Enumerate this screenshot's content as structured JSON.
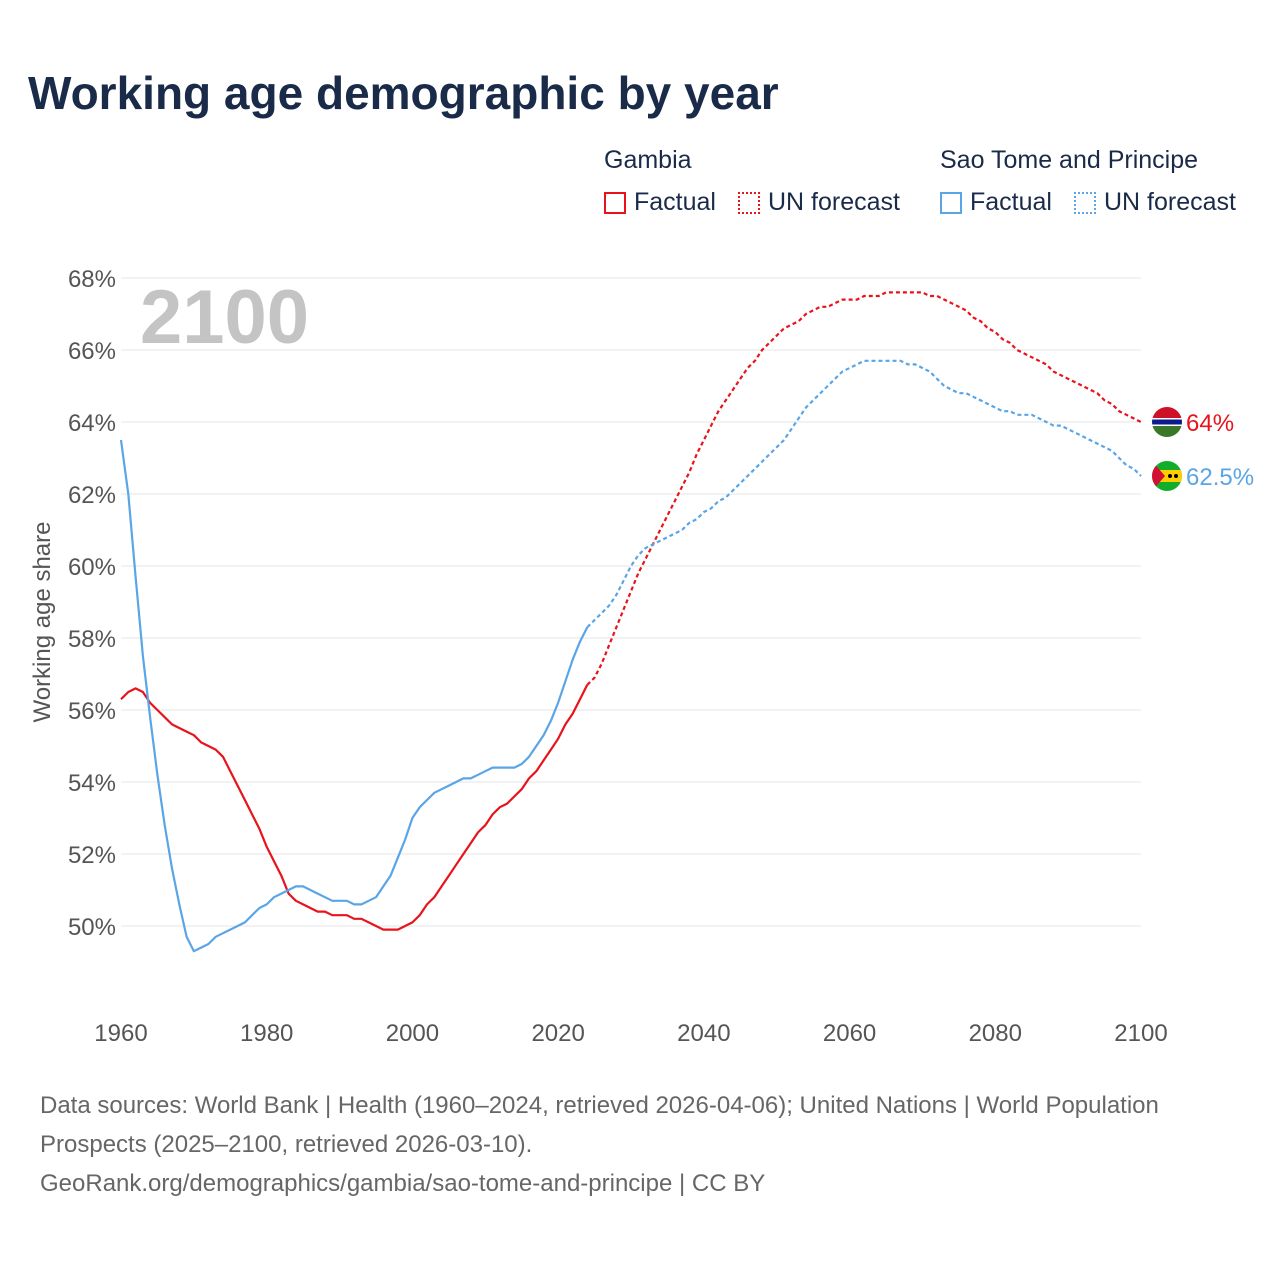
{
  "title": "Working age demographic by year",
  "legend": {
    "groups": [
      {
        "name": "Gambia",
        "factual_label": "Factual",
        "forecast_label": "UN forecast",
        "color": "#e8131b"
      },
      {
        "name": "Sao Tome and Principe",
        "factual_label": "Factual",
        "forecast_label": "UN forecast",
        "color": "#5aa5e6"
      }
    ]
  },
  "sources": {
    "line1": "Data sources: World Bank | Health (1960–2024, retrieved 2026-04-06); United Nations | World Population Prospects (2025–2100, retrieved 2026-03-10).",
    "line2": "GeoRank.org/demographics/gambia/sao-tome-and-principe | CC BY"
  },
  "chart_data": {
    "type": "line",
    "year_watermark": "2100",
    "ylabel": "Working age share",
    "xlim": [
      1960,
      2100
    ],
    "ylim": [
      47.5,
      68
    ],
    "x_ticks": [
      1960,
      1980,
      2000,
      2020,
      2040,
      2060,
      2080,
      2100
    ],
    "y_ticks": [
      50,
      52,
      54,
      56,
      58,
      60,
      62,
      64,
      66,
      68
    ],
    "y_tick_labels": [
      "50%",
      "52%",
      "54%",
      "56%",
      "58%",
      "60%",
      "62%",
      "64%",
      "66%",
      "68%"
    ],
    "grid": true,
    "forecast_start": 2024,
    "series": [
      {
        "name": "Gambia",
        "color": "#e8131b",
        "end_label": "64%",
        "flag": "gambia-flag",
        "points": [
          [
            1960,
            56.3
          ],
          [
            1961,
            56.5
          ],
          [
            1962,
            56.6
          ],
          [
            1963,
            56.5
          ],
          [
            1964,
            56.2
          ],
          [
            1965,
            56.0
          ],
          [
            1966,
            55.8
          ],
          [
            1967,
            55.6
          ],
          [
            1968,
            55.5
          ],
          [
            1969,
            55.4
          ],
          [
            1970,
            55.3
          ],
          [
            1971,
            55.1
          ],
          [
            1972,
            55.0
          ],
          [
            1973,
            54.9
          ],
          [
            1974,
            54.7
          ],
          [
            1975,
            54.3
          ],
          [
            1976,
            53.9
          ],
          [
            1977,
            53.5
          ],
          [
            1978,
            53.1
          ],
          [
            1979,
            52.7
          ],
          [
            1980,
            52.2
          ],
          [
            1981,
            51.8
          ],
          [
            1982,
            51.4
          ],
          [
            1983,
            50.9
          ],
          [
            1984,
            50.7
          ],
          [
            1985,
            50.6
          ],
          [
            1986,
            50.5
          ],
          [
            1987,
            50.4
          ],
          [
            1988,
            50.4
          ],
          [
            1989,
            50.3
          ],
          [
            1990,
            50.3
          ],
          [
            1991,
            50.3
          ],
          [
            1992,
            50.2
          ],
          [
            1993,
            50.2
          ],
          [
            1994,
            50.1
          ],
          [
            1995,
            50.0
          ],
          [
            1996,
            49.9
          ],
          [
            1997,
            49.9
          ],
          [
            1998,
            49.9
          ],
          [
            1999,
            50.0
          ],
          [
            2000,
            50.1
          ],
          [
            2001,
            50.3
          ],
          [
            2002,
            50.6
          ],
          [
            2003,
            50.8
          ],
          [
            2004,
            51.1
          ],
          [
            2005,
            51.4
          ],
          [
            2006,
            51.7
          ],
          [
            2007,
            52.0
          ],
          [
            2008,
            52.3
          ],
          [
            2009,
            52.6
          ],
          [
            2010,
            52.8
          ],
          [
            2011,
            53.1
          ],
          [
            2012,
            53.3
          ],
          [
            2013,
            53.4
          ],
          [
            2014,
            53.6
          ],
          [
            2015,
            53.8
          ],
          [
            2016,
            54.1
          ],
          [
            2017,
            54.3
          ],
          [
            2018,
            54.6
          ],
          [
            2019,
            54.9
          ],
          [
            2020,
            55.2
          ],
          [
            2021,
            55.6
          ],
          [
            2022,
            55.9
          ],
          [
            2023,
            56.3
          ],
          [
            2024,
            56.7
          ],
          [
            2025,
            56.9
          ],
          [
            2026,
            57.3
          ],
          [
            2027,
            57.8
          ],
          [
            2028,
            58.3
          ],
          [
            2029,
            58.8
          ],
          [
            2030,
            59.3
          ],
          [
            2031,
            59.8
          ],
          [
            2032,
            60.2
          ],
          [
            2033,
            60.6
          ],
          [
            2034,
            61.0
          ],
          [
            2035,
            61.4
          ],
          [
            2036,
            61.8
          ],
          [
            2037,
            62.2
          ],
          [
            2038,
            62.6
          ],
          [
            2039,
            63.1
          ],
          [
            2040,
            63.5
          ],
          [
            2041,
            63.9
          ],
          [
            2042,
            64.3
          ],
          [
            2043,
            64.6
          ],
          [
            2044,
            64.9
          ],
          [
            2045,
            65.2
          ],
          [
            2046,
            65.5
          ],
          [
            2047,
            65.7
          ],
          [
            2048,
            66.0
          ],
          [
            2049,
            66.2
          ],
          [
            2050,
            66.4
          ],
          [
            2051,
            66.6
          ],
          [
            2052,
            66.7
          ],
          [
            2053,
            66.8
          ],
          [
            2054,
            67.0
          ],
          [
            2055,
            67.1
          ],
          [
            2056,
            67.2
          ],
          [
            2057,
            67.2
          ],
          [
            2058,
            67.3
          ],
          [
            2059,
            67.4
          ],
          [
            2060,
            67.4
          ],
          [
            2061,
            67.4
          ],
          [
            2062,
            67.5
          ],
          [
            2063,
            67.5
          ],
          [
            2064,
            67.5
          ],
          [
            2065,
            67.6
          ],
          [
            2066,
            67.6
          ],
          [
            2067,
            67.6
          ],
          [
            2068,
            67.6
          ],
          [
            2069,
            67.6
          ],
          [
            2070,
            67.6
          ],
          [
            2071,
            67.5
          ],
          [
            2072,
            67.5
          ],
          [
            2073,
            67.4
          ],
          [
            2074,
            67.3
          ],
          [
            2075,
            67.2
          ],
          [
            2076,
            67.1
          ],
          [
            2077,
            66.9
          ],
          [
            2078,
            66.8
          ],
          [
            2079,
            66.6
          ],
          [
            2080,
            66.5
          ],
          [
            2081,
            66.3
          ],
          [
            2082,
            66.2
          ],
          [
            2083,
            66.0
          ],
          [
            2084,
            65.9
          ],
          [
            2085,
            65.8
          ],
          [
            2086,
            65.7
          ],
          [
            2087,
            65.6
          ],
          [
            2088,
            65.4
          ],
          [
            2089,
            65.3
          ],
          [
            2090,
            65.2
          ],
          [
            2091,
            65.1
          ],
          [
            2092,
            65.0
          ],
          [
            2093,
            64.9
          ],
          [
            2094,
            64.8
          ],
          [
            2095,
            64.6
          ],
          [
            2096,
            64.5
          ],
          [
            2097,
            64.3
          ],
          [
            2098,
            64.2
          ],
          [
            2099,
            64.1
          ],
          [
            2100,
            64.0
          ]
        ]
      },
      {
        "name": "Sao Tome and Principe",
        "color": "#5aa5e6",
        "end_label": "62.5%",
        "flag": "sao-tome-and-principe-flag",
        "points": [
          [
            1960,
            63.5
          ],
          [
            1961,
            62.0
          ],
          [
            1962,
            59.7
          ],
          [
            1963,
            57.5
          ],
          [
            1964,
            55.8
          ],
          [
            1965,
            54.2
          ],
          [
            1966,
            52.8
          ],
          [
            1967,
            51.6
          ],
          [
            1968,
            50.6
          ],
          [
            1969,
            49.7
          ],
          [
            1970,
            49.3
          ],
          [
            1971,
            49.4
          ],
          [
            1972,
            49.5
          ],
          [
            1973,
            49.7
          ],
          [
            1974,
            49.8
          ],
          [
            1975,
            49.9
          ],
          [
            1976,
            50.0
          ],
          [
            1977,
            50.1
          ],
          [
            1978,
            50.3
          ],
          [
            1979,
            50.5
          ],
          [
            1980,
            50.6
          ],
          [
            1981,
            50.8
          ],
          [
            1982,
            50.9
          ],
          [
            1983,
            51.0
          ],
          [
            1984,
            51.1
          ],
          [
            1985,
            51.1
          ],
          [
            1986,
            51.0
          ],
          [
            1987,
            50.9
          ],
          [
            1988,
            50.8
          ],
          [
            1989,
            50.7
          ],
          [
            1990,
            50.7
          ],
          [
            1991,
            50.7
          ],
          [
            1992,
            50.6
          ],
          [
            1993,
            50.6
          ],
          [
            1994,
            50.7
          ],
          [
            1995,
            50.8
          ],
          [
            1996,
            51.1
          ],
          [
            1997,
            51.4
          ],
          [
            1998,
            51.9
          ],
          [
            1999,
            52.4
          ],
          [
            2000,
            53.0
          ],
          [
            2001,
            53.3
          ],
          [
            2002,
            53.5
          ],
          [
            2003,
            53.7
          ],
          [
            2004,
            53.8
          ],
          [
            2005,
            53.9
          ],
          [
            2006,
            54.0
          ],
          [
            2007,
            54.1
          ],
          [
            2008,
            54.1
          ],
          [
            2009,
            54.2
          ],
          [
            2010,
            54.3
          ],
          [
            2011,
            54.4
          ],
          [
            2012,
            54.4
          ],
          [
            2013,
            54.4
          ],
          [
            2014,
            54.4
          ],
          [
            2015,
            54.5
          ],
          [
            2016,
            54.7
          ],
          [
            2017,
            55.0
          ],
          [
            2018,
            55.3
          ],
          [
            2019,
            55.7
          ],
          [
            2020,
            56.2
          ],
          [
            2021,
            56.8
          ],
          [
            2022,
            57.4
          ],
          [
            2023,
            57.9
          ],
          [
            2024,
            58.3
          ],
          [
            2025,
            58.5
          ],
          [
            2026,
            58.7
          ],
          [
            2027,
            58.9
          ],
          [
            2028,
            59.2
          ],
          [
            2029,
            59.6
          ],
          [
            2030,
            60.0
          ],
          [
            2031,
            60.3
          ],
          [
            2032,
            60.5
          ],
          [
            2033,
            60.6
          ],
          [
            2034,
            60.7
          ],
          [
            2035,
            60.8
          ],
          [
            2036,
            60.9
          ],
          [
            2037,
            61.0
          ],
          [
            2038,
            61.2
          ],
          [
            2039,
            61.3
          ],
          [
            2040,
            61.5
          ],
          [
            2041,
            61.6
          ],
          [
            2042,
            61.8
          ],
          [
            2043,
            61.9
          ],
          [
            2044,
            62.1
          ],
          [
            2045,
            62.3
          ],
          [
            2046,
            62.5
          ],
          [
            2047,
            62.7
          ],
          [
            2048,
            62.9
          ],
          [
            2049,
            63.1
          ],
          [
            2050,
            63.3
          ],
          [
            2051,
            63.5
          ],
          [
            2052,
            63.8
          ],
          [
            2053,
            64.1
          ],
          [
            2054,
            64.4
          ],
          [
            2055,
            64.6
          ],
          [
            2056,
            64.8
          ],
          [
            2057,
            65.0
          ],
          [
            2058,
            65.2
          ],
          [
            2059,
            65.4
          ],
          [
            2060,
            65.5
          ],
          [
            2061,
            65.6
          ],
          [
            2062,
            65.7
          ],
          [
            2063,
            65.7
          ],
          [
            2064,
            65.7
          ],
          [
            2065,
            65.7
          ],
          [
            2066,
            65.7
          ],
          [
            2067,
            65.7
          ],
          [
            2068,
            65.6
          ],
          [
            2069,
            65.6
          ],
          [
            2070,
            65.5
          ],
          [
            2071,
            65.4
          ],
          [
            2072,
            65.2
          ],
          [
            2073,
            65.0
          ],
          [
            2074,
            64.9
          ],
          [
            2075,
            64.8
          ],
          [
            2076,
            64.8
          ],
          [
            2077,
            64.7
          ],
          [
            2078,
            64.6
          ],
          [
            2079,
            64.5
          ],
          [
            2080,
            64.4
          ],
          [
            2081,
            64.3
          ],
          [
            2082,
            64.3
          ],
          [
            2083,
            64.2
          ],
          [
            2084,
            64.2
          ],
          [
            2085,
            64.2
          ],
          [
            2086,
            64.1
          ],
          [
            2087,
            64.0
          ],
          [
            2088,
            63.9
          ],
          [
            2089,
            63.9
          ],
          [
            2090,
            63.8
          ],
          [
            2091,
            63.7
          ],
          [
            2092,
            63.6
          ],
          [
            2093,
            63.5
          ],
          [
            2094,
            63.4
          ],
          [
            2095,
            63.3
          ],
          [
            2096,
            63.2
          ],
          [
            2097,
            63.0
          ],
          [
            2098,
            62.8
          ],
          [
            2099,
            62.7
          ],
          [
            2100,
            62.5
          ]
        ]
      }
    ]
  }
}
